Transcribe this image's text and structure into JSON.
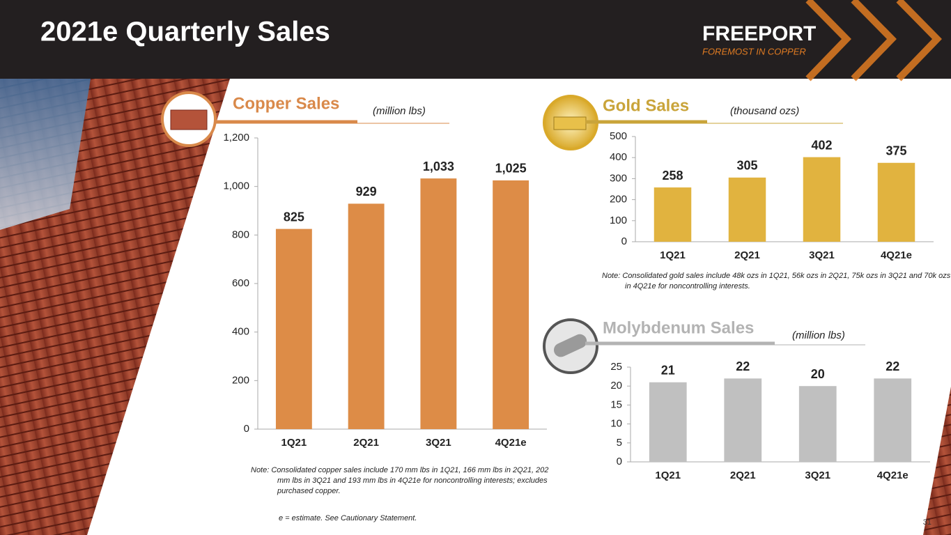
{
  "title": "2021e Quarterly Sales",
  "logo": {
    "name": "FREEPORT",
    "tagline": "FOREMOST IN COPPER"
  },
  "chart_data": [
    {
      "type": "bar",
      "title": "Copper Sales",
      "subtitle": "(million lbs)",
      "title_color": "#d9894a",
      "categories": [
        "1Q21",
        "2Q21",
        "3Q21",
        "4Q21e"
      ],
      "values": [
        825,
        929,
        1033,
        1025
      ],
      "value_labels": [
        "825",
        "929",
        "1,033",
        "1,025"
      ],
      "color": "#dd8c47",
      "ylim": [
        0,
        1200
      ],
      "yticks": [
        0,
        200,
        400,
        600,
        800,
        {
          "value": 1000,
          "label": "1,000"
        },
        {
          "value": 1200,
          "label": "1,200"
        }
      ],
      "note": "Note:  Consolidated copper sales include 170 mm lbs in 1Q21, 166 mm lbs in 2Q21, 202 mm lbs in 3Q21 and 193 mm lbs in 4Q21e for noncontrolling interests; excludes purchased copper."
    },
    {
      "type": "bar",
      "title": "Gold Sales",
      "subtitle": "(thousand ozs)",
      "title_color": "#c9a43a",
      "categories": [
        "1Q21",
        "2Q21",
        "3Q21",
        "4Q21e"
      ],
      "values": [
        258,
        305,
        402,
        375
      ],
      "color": "#e1b33f",
      "ylim": [
        0,
        500
      ],
      "yticks": [
        0,
        100,
        200,
        300,
        400,
        500
      ],
      "note": "Note: Consolidated gold sales include 48k ozs in 1Q21, 56k ozs in 2Q21, 75k ozs in 3Q21 and 70k ozs in 4Q21e for noncontrolling interests."
    },
    {
      "type": "bar",
      "title": "Molybdenum  Sales",
      "subtitle": "(million lbs)",
      "title_color": "#b3b3b3",
      "categories": [
        "1Q21",
        "2Q21",
        "3Q21",
        "4Q21e"
      ],
      "values": [
        21,
        22,
        20,
        22
      ],
      "color": "#c0c0c0",
      "ylim": [
        0,
        25
      ],
      "yticks": [
        0,
        5,
        10,
        15,
        20,
        25
      ]
    }
  ],
  "footnote": "e = estimate. See Cautionary Statement.",
  "page_number": 31
}
